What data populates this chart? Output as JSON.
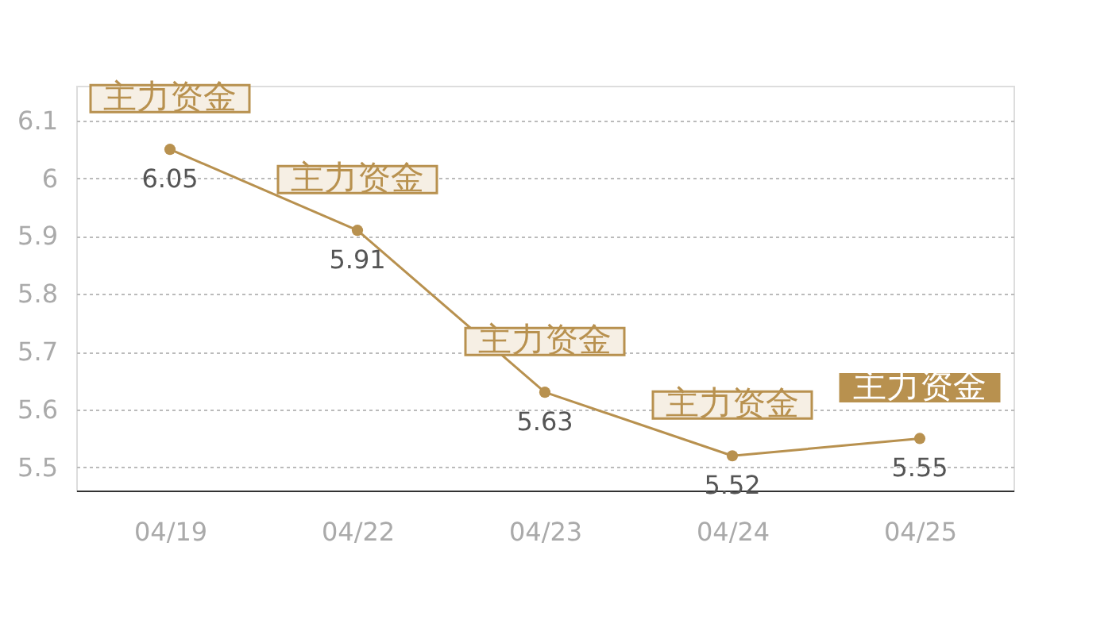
{
  "chart_data": {
    "type": "line",
    "categories": [
      "04/19",
      "04/22",
      "04/23",
      "04/24",
      "04/25"
    ],
    "series": [
      {
        "color": "#b8914f",
        "values": [
          6.05,
          5.91,
          5.63,
          5.52,
          5.55
        ]
      }
    ],
    "ylim": [
      5.46,
      6.16
    ],
    "yticks": [
      5.5,
      5.6,
      5.7,
      5.8,
      5.9,
      6,
      6.1
    ],
    "grid": "y",
    "marker": "circle",
    "line_style": "solid",
    "data_labels": true,
    "annotations": [
      {
        "text": "主力资金",
        "x": "04/19",
        "y": 6.05
      },
      {
        "text": "主力资金",
        "x": "04/22",
        "y": 5.91
      },
      {
        "text": "主力资金",
        "x": "04/23",
        "y": 5.63
      },
      {
        "text": "主力资金",
        "x": "04/24",
        "y": 5.52
      },
      {
        "text": "主力资金",
        "x": "04/25",
        "y": 5.55
      }
    ]
  }
}
